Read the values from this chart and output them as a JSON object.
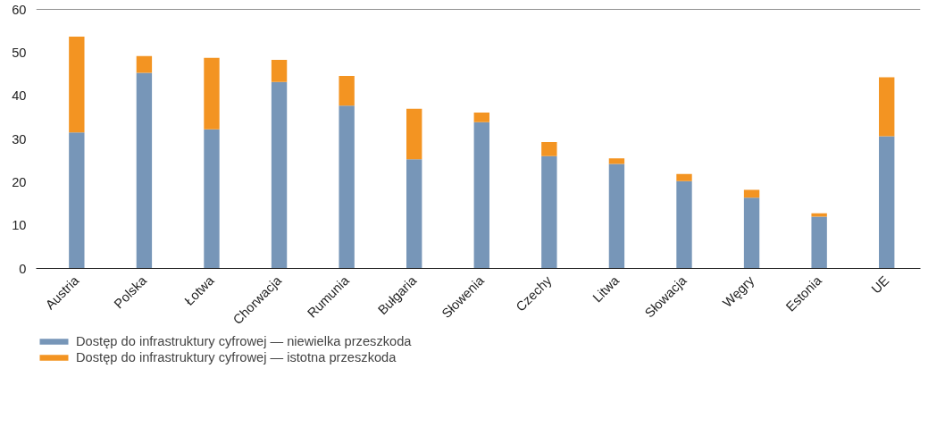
{
  "chart_data": {
    "type": "bar",
    "stacked": true,
    "categories": [
      "Austria",
      "Polska",
      "Łotwa",
      "Chorwacja",
      "Rumunia",
      "Bułgaria",
      "Słowenia",
      "Czechy",
      "Litwa",
      "Słowacja",
      "Węgry",
      "Estonia",
      "UE"
    ],
    "series": [
      {
        "name": "Dostęp do infrastruktury cyfrowej — niewielka przeszkoda",
        "color": "#7796b8",
        "values": [
          31.5,
          45.3,
          32.2,
          43.2,
          37.7,
          25.3,
          33.9,
          26.0,
          24.2,
          20.2,
          16.4,
          12.0,
          30.6
        ]
      },
      {
        "name": "Dostęp do infrastruktury cyfrowej — istotna przeszkoda",
        "color": "#f39422",
        "values": [
          22.2,
          3.9,
          16.6,
          5.1,
          6.9,
          11.7,
          2.2,
          3.3,
          1.3,
          1.7,
          1.8,
          0.8,
          13.7
        ]
      }
    ],
    "ylim": [
      0,
      60
    ],
    "yticks": [
      0,
      10,
      20,
      30,
      40,
      50,
      60
    ],
    "grid": false,
    "legend": "bottom left"
  }
}
